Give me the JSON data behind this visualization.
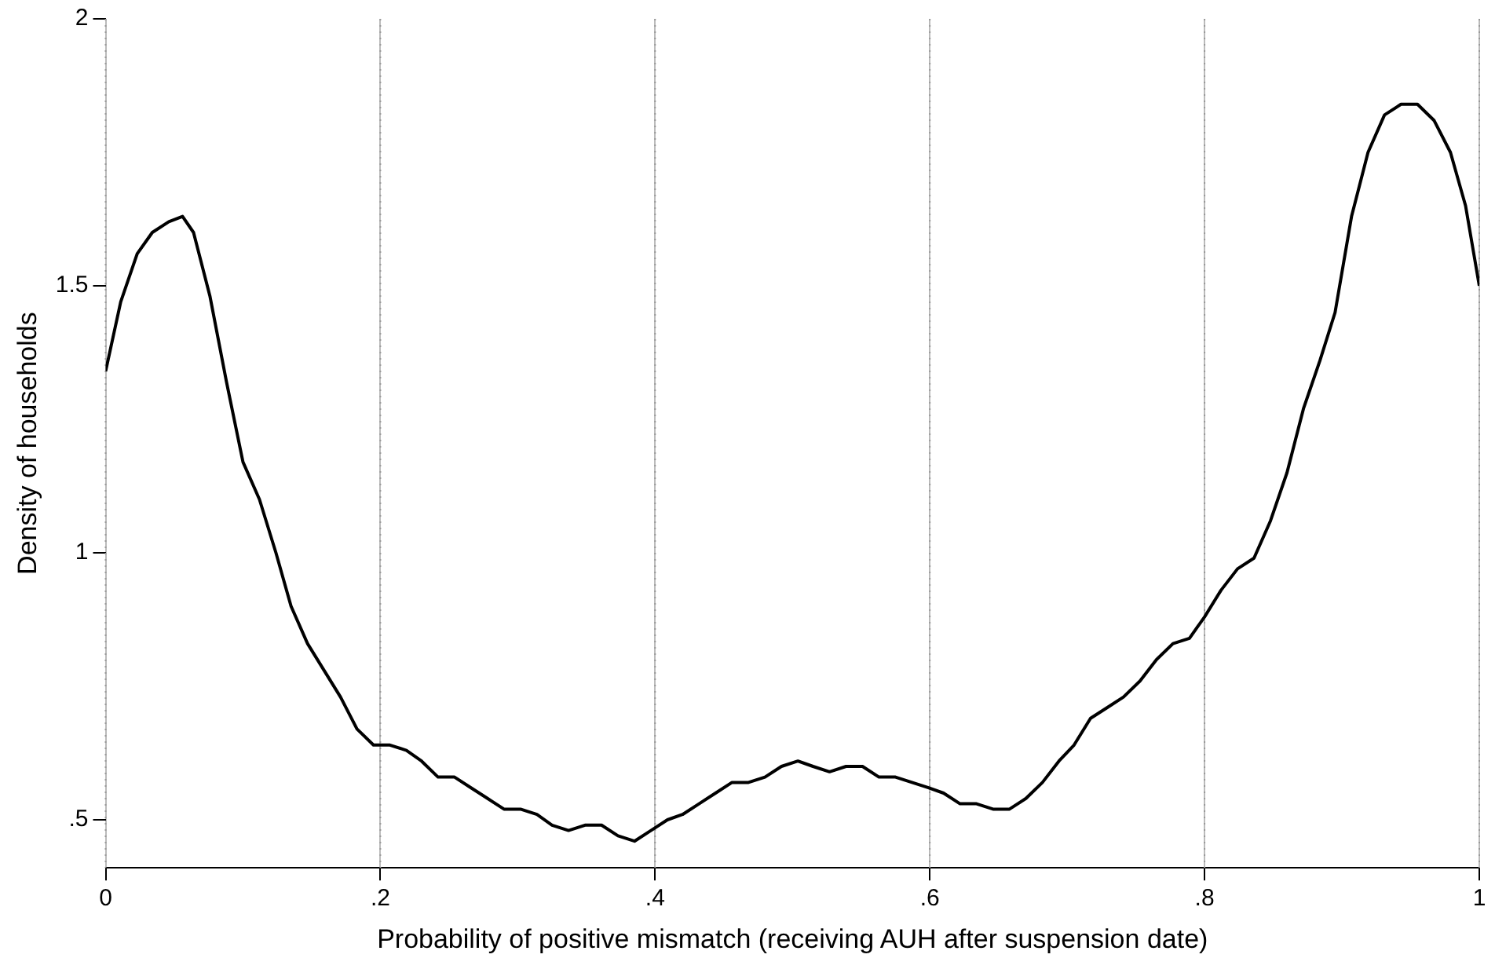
{
  "chart_data": {
    "type": "line",
    "xlabel": "Probability of positive mismatch (receiving AUH after suspension date)",
    "ylabel": "Density of households",
    "x": [
      0,
      0.011,
      0.023,
      0.034,
      0.046,
      0.056,
      0.064,
      0.076,
      0.088,
      0.1,
      0.112,
      0.124,
      0.135,
      0.147,
      0.159,
      0.171,
      0.183,
      0.195,
      0.207,
      0.219,
      0.23,
      0.242,
      0.254,
      0.266,
      0.278,
      0.29,
      0.302,
      0.314,
      0.325,
      0.337,
      0.349,
      0.361,
      0.373,
      0.385,
      0.397,
      0.409,
      0.42,
      0.432,
      0.444,
      0.456,
      0.468,
      0.48,
      0.492,
      0.504,
      0.515,
      0.527,
      0.539,
      0.551,
      0.563,
      0.575,
      0.587,
      0.599,
      0.61,
      0.622,
      0.634,
      0.646,
      0.658,
      0.67,
      0.682,
      0.694,
      0.705,
      0.717,
      0.729,
      0.741,
      0.753,
      0.765,
      0.777,
      0.789,
      0.8,
      0.812,
      0.824,
      0.836,
      0.848,
      0.86,
      0.872,
      0.884,
      0.895,
      0.907,
      0.919,
      0.931,
      0.943,
      0.955,
      0.967,
      0.979,
      0.99,
      1
    ],
    "series": [
      {
        "color": "#000000",
        "values": [
          1.34,
          1.47,
          1.56,
          1.6,
          1.62,
          1.63,
          1.6,
          1.48,
          1.32,
          1.17,
          1.1,
          1.0,
          0.9,
          0.83,
          0.78,
          0.73,
          0.67,
          0.64,
          0.64,
          0.63,
          0.61,
          0.58,
          0.58,
          0.56,
          0.54,
          0.52,
          0.52,
          0.51,
          0.49,
          0.48,
          0.49,
          0.49,
          0.47,
          0.46,
          0.48,
          0.5,
          0.51,
          0.53,
          0.55,
          0.57,
          0.57,
          0.58,
          0.6,
          0.61,
          0.6,
          0.59,
          0.6,
          0.6,
          0.58,
          0.58,
          0.57,
          0.56,
          0.55,
          0.53,
          0.53,
          0.52,
          0.52,
          0.54,
          0.57,
          0.61,
          0.64,
          0.69,
          0.71,
          0.73,
          0.76,
          0.8,
          0.83,
          0.84,
          0.88,
          0.93,
          0.97,
          0.99,
          1.06,
          1.15,
          1.27,
          1.36,
          1.45,
          1.63,
          1.75,
          1.82,
          1.84,
          1.84,
          1.81,
          1.75,
          1.65,
          1.5
        ]
      }
    ],
    "xlim": [
      0,
      1
    ],
    "ylim": [
      0.41,
      2
    ],
    "xticks": [
      0,
      {
        "value": 0.2,
        "label": ".2"
      },
      {
        "value": 0.4,
        "label": ".4"
      },
      {
        "value": 0.6,
        "label": ".6"
      },
      {
        "value": 0.8,
        "label": ".8"
      },
      1
    ],
    "yticks": [
      {
        "value": 0.5,
        "label": ".5"
      },
      1,
      1.5,
      2
    ],
    "grid": "x",
    "legend": false,
    "marker": "none",
    "line_style": "solid"
  }
}
